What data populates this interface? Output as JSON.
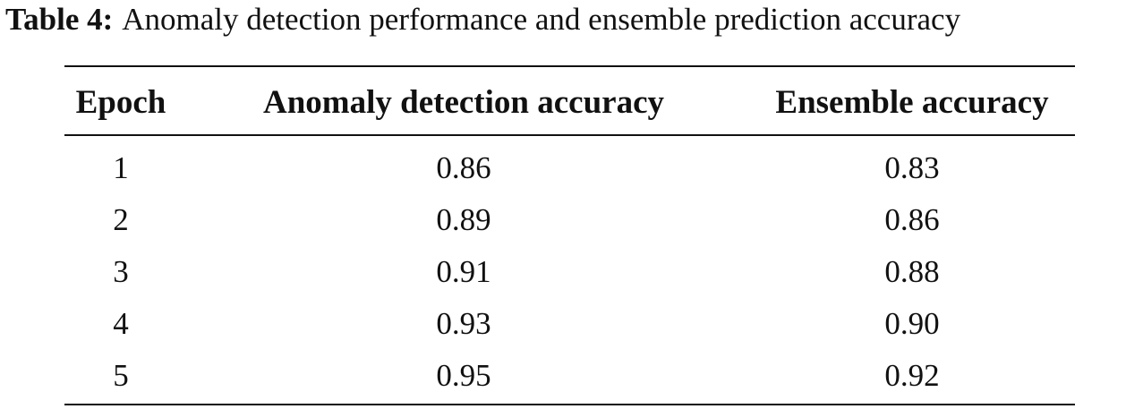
{
  "caption": {
    "label": "Table 4:",
    "text": "Anomaly detection performance and ensemble prediction accuracy"
  },
  "table": {
    "header": [
      "Epoch",
      "Anomaly detection accuracy",
      "Ensemble accuracy"
    ],
    "rows": [
      [
        "1",
        "0.86",
        "0.83"
      ],
      [
        "2",
        "0.89",
        "0.86"
      ],
      [
        "3",
        "0.91",
        "0.88"
      ],
      [
        "4",
        "0.93",
        "0.90"
      ],
      [
        "5",
        "0.95",
        "0.92"
      ]
    ]
  }
}
